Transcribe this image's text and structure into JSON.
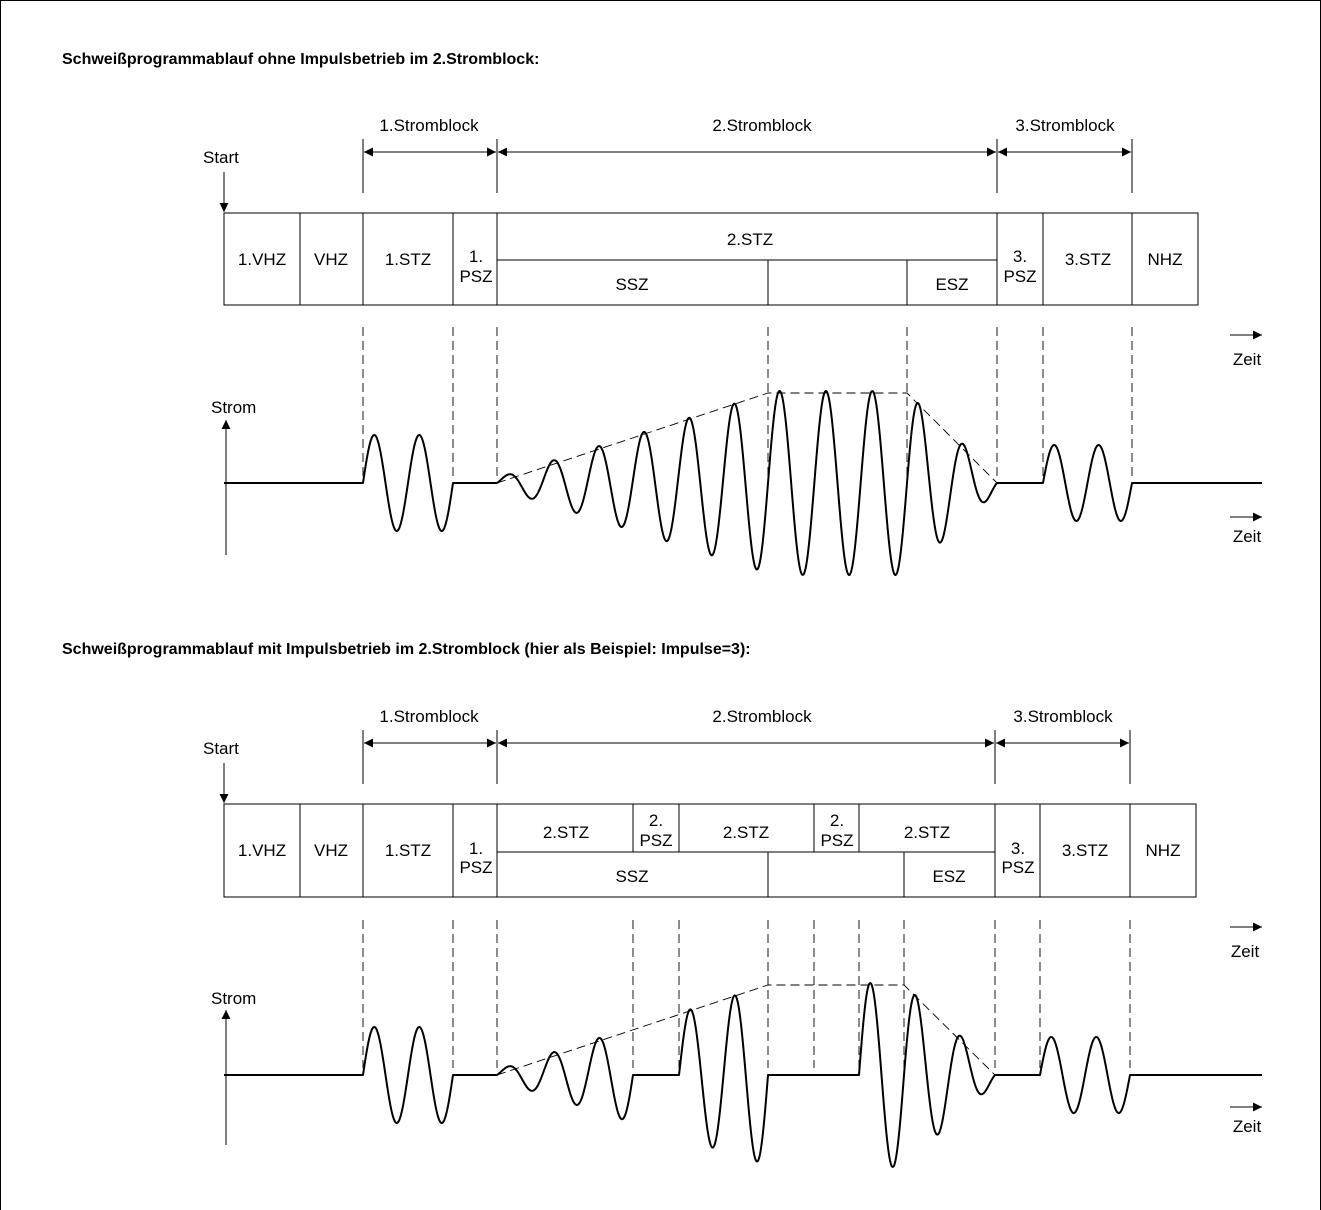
{
  "diagrams": [
    {
      "heading": "Schweißprogrammablauf ohne Impulsbetrieb im 2.Stromblock:",
      "blocks": [
        "1.Stromblock",
        "2.Stromblock",
        "3.Stromblock"
      ],
      "start_label": "Start",
      "phases_top": [
        "1.VHZ",
        "VHZ",
        "1.STZ",
        "1.",
        "2.STZ",
        "3.",
        "3.STZ",
        "NHZ"
      ],
      "phases_bottom": [
        "PSZ",
        "SSZ",
        "ESZ",
        "PSZ"
      ],
      "time_label": "Zeit",
      "current_label": "Strom",
      "pulses": 1
    },
    {
      "heading": "Schweißprogrammablauf mit Impulsbetrieb im 2.Stromblock (hier als Beispiel: Impulse=3):",
      "blocks": [
        "1.Stromblock",
        "2.Stromblock",
        "3.Stromblock"
      ],
      "start_label": "Start",
      "phases_top": [
        "1.VHZ",
        "VHZ",
        "1.STZ",
        "1.",
        "2.STZ",
        "2.",
        "2.STZ",
        "2.",
        "2.STZ",
        "3.",
        "3.STZ",
        "NHZ"
      ],
      "phases_bottom": [
        "PSZ",
        "PSZ",
        "PSZ",
        "SSZ",
        "ESZ",
        "PSZ"
      ],
      "time_label": "Zeit",
      "current_label": "Strom",
      "pulses": 3
    }
  ]
}
